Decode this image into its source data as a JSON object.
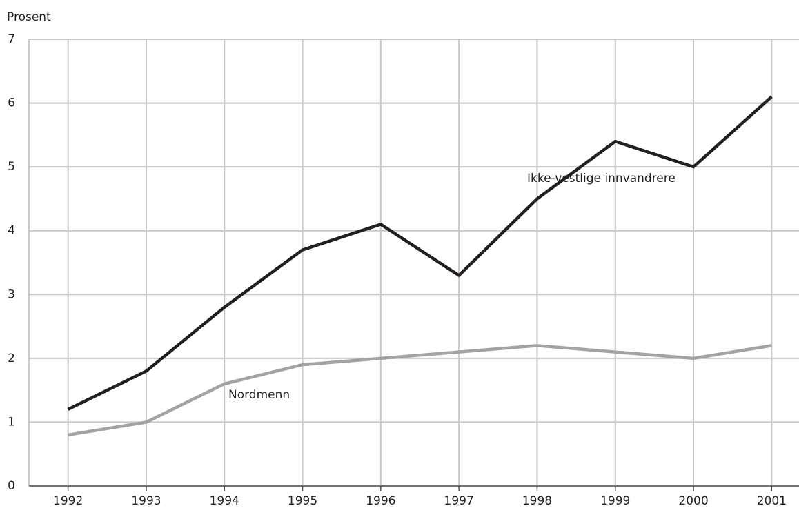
{
  "chart_data": {
    "type": "line",
    "y_label": "Prosent",
    "x": [
      1992,
      1993,
      1994,
      1995,
      1996,
      1997,
      1998,
      1999,
      2000,
      2001
    ],
    "series": [
      {
        "name": "Ikke-vestlige innvandrere",
        "color": "#231f20",
        "values": [
          1.2,
          1.8,
          2.8,
          3.7,
          4.1,
          3.3,
          4.5,
          5.4,
          5.0,
          6.1
        ]
      },
      {
        "name": "Nordmenn",
        "color": "#a3a3a3",
        "values": [
          0.8,
          1.0,
          1.6,
          1.9,
          2.0,
          2.1,
          2.2,
          2.1,
          2.0,
          2.2
        ]
      }
    ],
    "xlim": [
      1991.5,
      2001.35
    ],
    "ylim": [
      0,
      7
    ],
    "xticks": [
      1992,
      1993,
      1994,
      1995,
      1996,
      1997,
      1998,
      1999,
      2000,
      2001
    ],
    "yticks": [
      0,
      1,
      2,
      3,
      4,
      5,
      6,
      7
    ],
    "grid": true
  }
}
